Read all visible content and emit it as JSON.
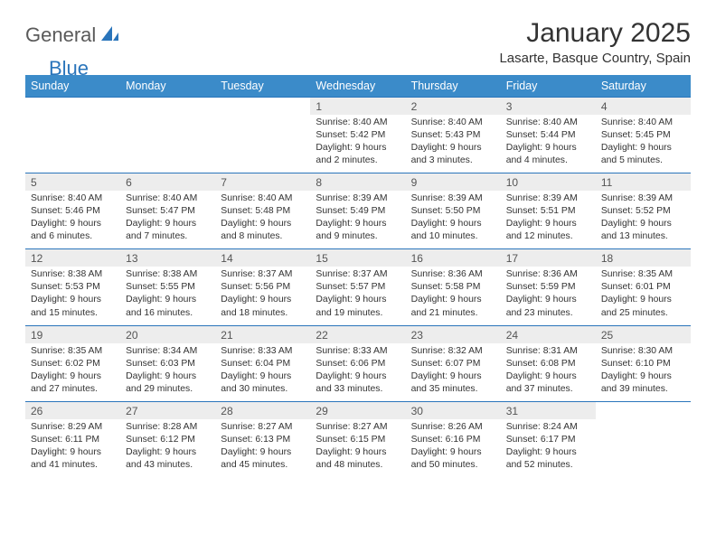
{
  "logo": {
    "part1": "General",
    "part2": "Blue"
  },
  "title": "January 2025",
  "location": "Lasarte, Basque Country, Spain",
  "colors": {
    "header_bg": "#3b8bc9",
    "separator": "#2a75bb",
    "daynum_bg": "#ededed",
    "text": "#333333",
    "logo_gray": "#5a5a5a",
    "logo_blue": "#2a75bb"
  },
  "day_headers": [
    "Sunday",
    "Monday",
    "Tuesday",
    "Wednesday",
    "Thursday",
    "Friday",
    "Saturday"
  ],
  "weeks": [
    [
      null,
      null,
      null,
      {
        "n": "1",
        "sr": "8:40 AM",
        "ss": "5:42 PM",
        "dl": "9 hours and 2 minutes."
      },
      {
        "n": "2",
        "sr": "8:40 AM",
        "ss": "5:43 PM",
        "dl": "9 hours and 3 minutes."
      },
      {
        "n": "3",
        "sr": "8:40 AM",
        "ss": "5:44 PM",
        "dl": "9 hours and 4 minutes."
      },
      {
        "n": "4",
        "sr": "8:40 AM",
        "ss": "5:45 PM",
        "dl": "9 hours and 5 minutes."
      }
    ],
    [
      {
        "n": "5",
        "sr": "8:40 AM",
        "ss": "5:46 PM",
        "dl": "9 hours and 6 minutes."
      },
      {
        "n": "6",
        "sr": "8:40 AM",
        "ss": "5:47 PM",
        "dl": "9 hours and 7 minutes."
      },
      {
        "n": "7",
        "sr": "8:40 AM",
        "ss": "5:48 PM",
        "dl": "9 hours and 8 minutes."
      },
      {
        "n": "8",
        "sr": "8:39 AM",
        "ss": "5:49 PM",
        "dl": "9 hours and 9 minutes."
      },
      {
        "n": "9",
        "sr": "8:39 AM",
        "ss": "5:50 PM",
        "dl": "9 hours and 10 minutes."
      },
      {
        "n": "10",
        "sr": "8:39 AM",
        "ss": "5:51 PM",
        "dl": "9 hours and 12 minutes."
      },
      {
        "n": "11",
        "sr": "8:39 AM",
        "ss": "5:52 PM",
        "dl": "9 hours and 13 minutes."
      }
    ],
    [
      {
        "n": "12",
        "sr": "8:38 AM",
        "ss": "5:53 PM",
        "dl": "9 hours and 15 minutes."
      },
      {
        "n": "13",
        "sr": "8:38 AM",
        "ss": "5:55 PM",
        "dl": "9 hours and 16 minutes."
      },
      {
        "n": "14",
        "sr": "8:37 AM",
        "ss": "5:56 PM",
        "dl": "9 hours and 18 minutes."
      },
      {
        "n": "15",
        "sr": "8:37 AM",
        "ss": "5:57 PM",
        "dl": "9 hours and 19 minutes."
      },
      {
        "n": "16",
        "sr": "8:36 AM",
        "ss": "5:58 PM",
        "dl": "9 hours and 21 minutes."
      },
      {
        "n": "17",
        "sr": "8:36 AM",
        "ss": "5:59 PM",
        "dl": "9 hours and 23 minutes."
      },
      {
        "n": "18",
        "sr": "8:35 AM",
        "ss": "6:01 PM",
        "dl": "9 hours and 25 minutes."
      }
    ],
    [
      {
        "n": "19",
        "sr": "8:35 AM",
        "ss": "6:02 PM",
        "dl": "9 hours and 27 minutes."
      },
      {
        "n": "20",
        "sr": "8:34 AM",
        "ss": "6:03 PM",
        "dl": "9 hours and 29 minutes."
      },
      {
        "n": "21",
        "sr": "8:33 AM",
        "ss": "6:04 PM",
        "dl": "9 hours and 30 minutes."
      },
      {
        "n": "22",
        "sr": "8:33 AM",
        "ss": "6:06 PM",
        "dl": "9 hours and 33 minutes."
      },
      {
        "n": "23",
        "sr": "8:32 AM",
        "ss": "6:07 PM",
        "dl": "9 hours and 35 minutes."
      },
      {
        "n": "24",
        "sr": "8:31 AM",
        "ss": "6:08 PM",
        "dl": "9 hours and 37 minutes."
      },
      {
        "n": "25",
        "sr": "8:30 AM",
        "ss": "6:10 PM",
        "dl": "9 hours and 39 minutes."
      }
    ],
    [
      {
        "n": "26",
        "sr": "8:29 AM",
        "ss": "6:11 PM",
        "dl": "9 hours and 41 minutes."
      },
      {
        "n": "27",
        "sr": "8:28 AM",
        "ss": "6:12 PM",
        "dl": "9 hours and 43 minutes."
      },
      {
        "n": "28",
        "sr": "8:27 AM",
        "ss": "6:13 PM",
        "dl": "9 hours and 45 minutes."
      },
      {
        "n": "29",
        "sr": "8:27 AM",
        "ss": "6:15 PM",
        "dl": "9 hours and 48 minutes."
      },
      {
        "n": "30",
        "sr": "8:26 AM",
        "ss": "6:16 PM",
        "dl": "9 hours and 50 minutes."
      },
      {
        "n": "31",
        "sr": "8:24 AM",
        "ss": "6:17 PM",
        "dl": "9 hours and 52 minutes."
      },
      null
    ]
  ]
}
